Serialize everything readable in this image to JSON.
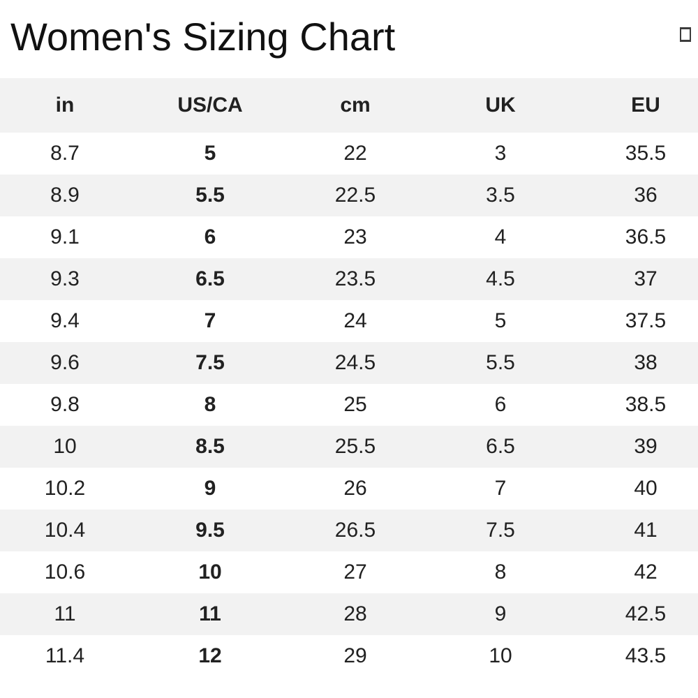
{
  "header": {
    "title": "Women's Sizing Chart",
    "icon": "missing-glyph-box"
  },
  "colors": {
    "stripe": "#f2f2f2",
    "text": "#212121",
    "background": "#ffffff"
  },
  "table": {
    "columns": [
      "in",
      "US/CA",
      "cm",
      "UK",
      "EU"
    ],
    "rows": [
      [
        "8.7",
        "5",
        "22",
        "3",
        "35.5"
      ],
      [
        "8.9",
        "5.5",
        "22.5",
        "3.5",
        "36"
      ],
      [
        "9.1",
        "6",
        "23",
        "4",
        "36.5"
      ],
      [
        "9.3",
        "6.5",
        "23.5",
        "4.5",
        "37"
      ],
      [
        "9.4",
        "7",
        "24",
        "5",
        "37.5"
      ],
      [
        "9.6",
        "7.5",
        "24.5",
        "5.5",
        "38"
      ],
      [
        "9.8",
        "8",
        "25",
        "6",
        "38.5"
      ],
      [
        "10",
        "8.5",
        "25.5",
        "6.5",
        "39"
      ],
      [
        "10.2",
        "9",
        "26",
        "7",
        "40"
      ],
      [
        "10.4",
        "9.5",
        "26.5",
        "7.5",
        "41"
      ],
      [
        "10.6",
        "10",
        "27",
        "8",
        "42"
      ],
      [
        "11",
        "11",
        "28",
        "9",
        "42.5"
      ],
      [
        "11.4",
        "12",
        "29",
        "10",
        "43.5"
      ]
    ]
  }
}
